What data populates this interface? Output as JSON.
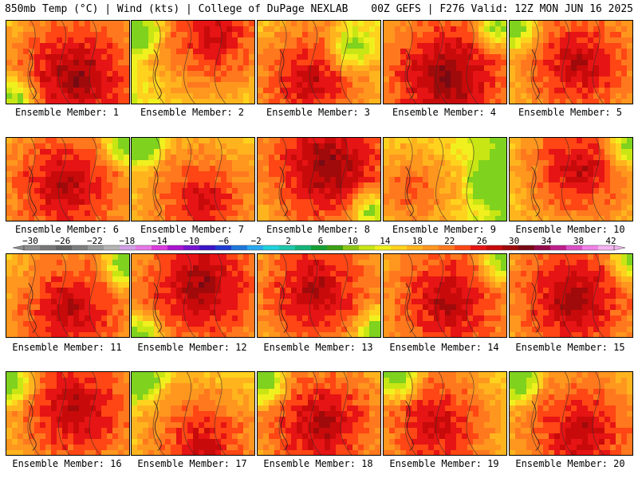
{
  "header": {
    "left": "850mb Temp (°C) | Wind (kts) | College of DuPage NEXLAB",
    "right": "00Z GEFS | F276 Valid: 12Z MON JUN 16 2025"
  },
  "panel_label_prefix": "Ensemble Member: ",
  "members": [
    {
      "number": "1",
      "hot": [
        0.55,
        0.65
      ],
      "cool": [
        0.05,
        0.9
      ],
      "warmth": 0.7
    },
    {
      "number": "2",
      "hot": [
        0.65,
        0.15
      ],
      "cool": [
        0.05,
        0.1
      ],
      "warmth": 0.45
    },
    {
      "number": "3",
      "hot": [
        0.4,
        0.7
      ],
      "cool": [
        0.75,
        0.3
      ],
      "warmth": 0.5
    },
    {
      "number": "4",
      "hot": [
        0.5,
        0.65
      ],
      "cool": [
        0.9,
        0.05
      ],
      "warmth": 0.75
    },
    {
      "number": "5",
      "hot": [
        0.55,
        0.5
      ],
      "cool": [
        0.02,
        0.05
      ],
      "warmth": 0.55
    },
    {
      "number": "6",
      "hot": [
        0.45,
        0.55
      ],
      "cool": [
        0.95,
        0.05
      ],
      "warmth": 0.6
    },
    {
      "number": "7",
      "hot": [
        0.55,
        0.75
      ],
      "cool": [
        0.05,
        0.05
      ],
      "warmth": 0.45
    },
    {
      "number": "8",
      "hot": [
        0.55,
        0.3
      ],
      "cool": [
        0.9,
        0.85
      ],
      "warmth": 0.75
    },
    {
      "number": "9",
      "hot": [
        0.2,
        0.6
      ],
      "cool": [
        0.85,
        0.5
      ],
      "warmth": 0.1
    },
    {
      "number": "10",
      "hot": [
        0.55,
        0.35
      ],
      "cool": [
        0.95,
        0.05
      ],
      "warmth": 0.5
    },
    {
      "number": "11",
      "hot": [
        0.5,
        0.65
      ],
      "cool": [
        0.95,
        0.1
      ],
      "warmth": 0.55
    },
    {
      "number": "12",
      "hot": [
        0.55,
        0.35
      ],
      "cool": [
        0.05,
        0.95
      ],
      "warmth": 0.7
    },
    {
      "number": "13",
      "hot": [
        0.45,
        0.4
      ],
      "cool": [
        0.95,
        0.9
      ],
      "warmth": 0.6
    },
    {
      "number": "14",
      "hot": [
        0.5,
        0.55
      ],
      "cool": [
        0.95,
        0.05
      ],
      "warmth": 0.6
    },
    {
      "number": "15",
      "hot": [
        0.5,
        0.5
      ],
      "cool": [
        0.98,
        0.05
      ],
      "warmth": 0.65
    },
    {
      "number": "16",
      "hot": [
        0.55,
        0.4
      ],
      "cool": [
        0.02,
        0.1
      ],
      "warmth": 0.6
    },
    {
      "number": "17",
      "hot": [
        0.55,
        0.85
      ],
      "cool": [
        0.05,
        0.05
      ],
      "warmth": 0.45
    },
    {
      "number": "18",
      "hot": [
        0.5,
        0.6
      ],
      "cool": [
        0.05,
        0.1
      ],
      "warmth": 0.6
    },
    {
      "number": "19",
      "hot": [
        0.4,
        0.6
      ],
      "cool": [
        0.1,
        0.05
      ],
      "warmth": 0.5
    },
    {
      "number": "20",
      "hot": [
        0.55,
        0.7
      ],
      "cool": [
        0.05,
        0.05
      ],
      "warmth": 0.55
    }
  ],
  "colorbar": {
    "tick_labels": [
      "−30",
      "−26",
      "−22",
      "−18",
      "−14",
      "−10",
      "−6",
      "−2",
      "2",
      "6",
      "10",
      "14",
      "18",
      "22",
      "26",
      "30",
      "34",
      "38",
      "42"
    ],
    "colors": [
      "#8c8c8c",
      "#787878",
      "#646464",
      "#7e7e7e",
      "#9a9a9a",
      "#b4b4b4",
      "#d2a0e6",
      "#e678e6",
      "#dc3cdc",
      "#aa14d2",
      "#7814d2",
      "#3c14c8",
      "#1e3cd2",
      "#1e78dc",
      "#28aaf0",
      "#1ed2dc",
      "#1ec8aa",
      "#14b478",
      "#14a032",
      "#3ca014",
      "#8cc814",
      "#c8e614",
      "#f0f01e",
      "#ffd21e",
      "#ffb41e",
      "#ff961e",
      "#ff781e",
      "#ff4614",
      "#e61414",
      "#c80a0a",
      "#a00a0a",
      "#780a14",
      "#960a4b",
      "#be1e8c",
      "#dc50c8",
      "#f082e6",
      "#f5b4f0"
    ]
  }
}
